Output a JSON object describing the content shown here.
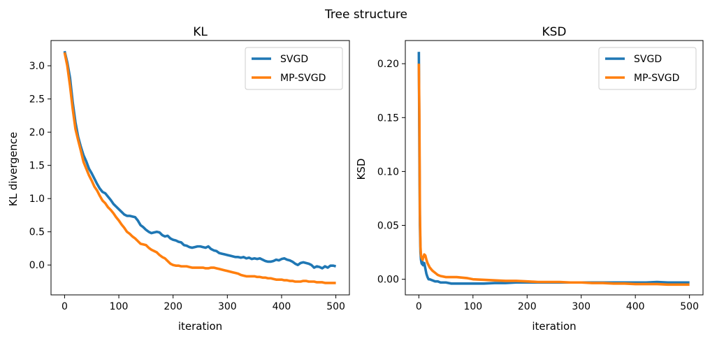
{
  "figure": {
    "suptitle": "Tree structure"
  },
  "chart_data": [
    {
      "type": "line",
      "title": "KL",
      "xlabel": "iteration",
      "ylabel": "KL divergence",
      "xlim": [
        -25,
        525
      ],
      "ylim": [
        -0.45,
        3.38
      ],
      "xticks": [
        0,
        100,
        200,
        300,
        400,
        500
      ],
      "yticks": [
        0.0,
        0.5,
        1.0,
        1.5,
        2.0,
        2.5,
        3.0
      ],
      "ytick_labels": [
        "0.0",
        "0.5",
        "1.0",
        "1.5",
        "2.0",
        "2.5",
        "3.0"
      ],
      "grid": false,
      "legend_position": "top-right",
      "series": [
        {
          "name": "SVGD",
          "color": "#1f77b4",
          "x": [
            0,
            5,
            10,
            15,
            20,
            25,
            30,
            35,
            40,
            45,
            50,
            55,
            60,
            65,
            70,
            75,
            80,
            85,
            90,
            95,
            100,
            105,
            110,
            115,
            120,
            125,
            130,
            135,
            140,
            145,
            150,
            155,
            160,
            165,
            170,
            175,
            180,
            185,
            190,
            195,
            200,
            205,
            210,
            215,
            220,
            225,
            230,
            235,
            240,
            245,
            250,
            255,
            260,
            265,
            270,
            275,
            280,
            285,
            290,
            295,
            300,
            305,
            310,
            315,
            320,
            325,
            330,
            335,
            340,
            345,
            350,
            355,
            360,
            365,
            370,
            375,
            380,
            385,
            390,
            395,
            400,
            405,
            410,
            415,
            420,
            425,
            430,
            435,
            440,
            445,
            450,
            455,
            460,
            465,
            470,
            475,
            480,
            485,
            490,
            495,
            500
          ],
          "values": [
            3.22,
            3.05,
            2.82,
            2.45,
            2.15,
            1.93,
            1.78,
            1.65,
            1.56,
            1.45,
            1.38,
            1.3,
            1.22,
            1.15,
            1.1,
            1.08,
            1.03,
            0.98,
            0.92,
            0.88,
            0.84,
            0.8,
            0.76,
            0.74,
            0.74,
            0.73,
            0.72,
            0.67,
            0.6,
            0.57,
            0.53,
            0.5,
            0.48,
            0.49,
            0.5,
            0.49,
            0.45,
            0.43,
            0.44,
            0.4,
            0.38,
            0.37,
            0.35,
            0.34,
            0.3,
            0.29,
            0.27,
            0.26,
            0.27,
            0.28,
            0.28,
            0.27,
            0.26,
            0.28,
            0.24,
            0.22,
            0.21,
            0.18,
            0.17,
            0.16,
            0.15,
            0.14,
            0.13,
            0.12,
            0.12,
            0.11,
            0.12,
            0.1,
            0.11,
            0.09,
            0.1,
            0.09,
            0.1,
            0.08,
            0.06,
            0.05,
            0.05,
            0.06,
            0.08,
            0.07,
            0.09,
            0.1,
            0.08,
            0.07,
            0.05,
            0.02,
            0.0,
            0.03,
            0.04,
            0.03,
            0.02,
            0.0,
            -0.04,
            -0.02,
            -0.03,
            -0.05,
            -0.02,
            -0.04,
            -0.01,
            -0.01,
            -0.02
          ]
        },
        {
          "name": "MP-SVGD",
          "color": "#ff7f0e",
          "x": [
            0,
            5,
            10,
            15,
            20,
            25,
            30,
            35,
            40,
            45,
            50,
            55,
            60,
            65,
            70,
            75,
            80,
            85,
            90,
            95,
            100,
            105,
            110,
            115,
            120,
            125,
            130,
            135,
            140,
            145,
            150,
            155,
            160,
            165,
            170,
            175,
            180,
            185,
            190,
            195,
            200,
            205,
            210,
            215,
            220,
            225,
            230,
            235,
            240,
            245,
            250,
            255,
            260,
            265,
            270,
            275,
            280,
            285,
            290,
            295,
            300,
            305,
            310,
            315,
            320,
            325,
            330,
            335,
            340,
            345,
            350,
            355,
            360,
            365,
            370,
            375,
            380,
            385,
            390,
            395,
            400,
            405,
            410,
            415,
            420,
            425,
            430,
            435,
            440,
            445,
            450,
            455,
            460,
            465,
            470,
            475,
            480,
            485,
            490,
            495,
            500
          ],
          "values": [
            3.2,
            3.0,
            2.7,
            2.35,
            2.05,
            1.88,
            1.72,
            1.55,
            1.45,
            1.35,
            1.27,
            1.18,
            1.12,
            1.04,
            0.97,
            0.93,
            0.87,
            0.83,
            0.78,
            0.72,
            0.67,
            0.61,
            0.56,
            0.5,
            0.47,
            0.43,
            0.4,
            0.36,
            0.32,
            0.31,
            0.3,
            0.26,
            0.23,
            0.21,
            0.19,
            0.15,
            0.12,
            0.1,
            0.06,
            0.02,
            0.0,
            -0.01,
            -0.01,
            -0.02,
            -0.02,
            -0.02,
            -0.03,
            -0.04,
            -0.04,
            -0.04,
            -0.04,
            -0.04,
            -0.05,
            -0.05,
            -0.04,
            -0.04,
            -0.05,
            -0.06,
            -0.07,
            -0.08,
            -0.09,
            -0.1,
            -0.11,
            -0.12,
            -0.13,
            -0.15,
            -0.16,
            -0.17,
            -0.17,
            -0.17,
            -0.17,
            -0.18,
            -0.18,
            -0.19,
            -0.19,
            -0.2,
            -0.2,
            -0.21,
            -0.22,
            -0.22,
            -0.22,
            -0.23,
            -0.23,
            -0.24,
            -0.24,
            -0.25,
            -0.25,
            -0.25,
            -0.24,
            -0.24,
            -0.25,
            -0.25,
            -0.25,
            -0.26,
            -0.26,
            -0.26,
            -0.27,
            -0.27,
            -0.27,
            -0.27,
            -0.27
          ]
        }
      ]
    },
    {
      "type": "line",
      "title": "KSD",
      "xlabel": "iteration",
      "ylabel": "KSD",
      "xlim": [
        -25,
        525
      ],
      "ylim": [
        -0.0145,
        0.2215
      ],
      "xticks": [
        0,
        100,
        200,
        300,
        400,
        500
      ],
      "yticks": [
        0.0,
        0.05,
        0.1,
        0.15,
        0.2
      ],
      "ytick_labels": [
        "0.00",
        "0.05",
        "0.10",
        "0.15",
        "0.20"
      ],
      "grid": false,
      "legend_position": "top-right",
      "series": [
        {
          "name": "SVGD",
          "color": "#1f77b4",
          "x": [
            0,
            1,
            2,
            3,
            4,
            5,
            6,
            7,
            8,
            10,
            12,
            14,
            16,
            18,
            20,
            25,
            30,
            35,
            40,
            50,
            60,
            70,
            80,
            90,
            100,
            120,
            140,
            160,
            180,
            200,
            220,
            240,
            260,
            280,
            300,
            320,
            340,
            360,
            380,
            400,
            420,
            440,
            460,
            480,
            500
          ],
          "values": [
            0.211,
            0.12,
            0.05,
            0.025,
            0.018,
            0.015,
            0.014,
            0.016,
            0.013,
            0.015,
            0.01,
            0.005,
            0.002,
            0.0,
            0.0,
            -0.001,
            -0.002,
            -0.002,
            -0.003,
            -0.003,
            -0.004,
            -0.004,
            -0.004,
            -0.004,
            -0.004,
            -0.004,
            -0.0035,
            -0.0035,
            -0.003,
            -0.003,
            -0.003,
            -0.003,
            -0.003,
            -0.003,
            -0.003,
            -0.003,
            -0.003,
            -0.003,
            -0.003,
            -0.003,
            -0.003,
            -0.0025,
            -0.003,
            -0.003,
            -0.003
          ]
        },
        {
          "name": "MP-SVGD",
          "color": "#ff7f0e",
          "x": [
            0,
            1,
            2,
            3,
            4,
            5,
            6,
            7,
            8,
            10,
            12,
            14,
            16,
            18,
            20,
            25,
            30,
            35,
            40,
            50,
            60,
            70,
            80,
            90,
            100,
            120,
            140,
            160,
            180,
            200,
            220,
            240,
            260,
            280,
            300,
            320,
            340,
            360,
            380,
            400,
            420,
            440,
            460,
            480,
            500
          ],
          "values": [
            0.2,
            0.15,
            0.06,
            0.03,
            0.022,
            0.02,
            0.019,
            0.018,
            0.02,
            0.023,
            0.022,
            0.018,
            0.015,
            0.013,
            0.011,
            0.008,
            0.006,
            0.004,
            0.003,
            0.002,
            0.002,
            0.002,
            0.0015,
            0.001,
            0.0,
            -0.0005,
            -0.001,
            -0.0015,
            -0.0015,
            -0.002,
            -0.0025,
            -0.0025,
            -0.0025,
            -0.003,
            -0.003,
            -0.0035,
            -0.0035,
            -0.004,
            -0.004,
            -0.0045,
            -0.0045,
            -0.0045,
            -0.005,
            -0.005,
            -0.005
          ]
        }
      ]
    }
  ]
}
